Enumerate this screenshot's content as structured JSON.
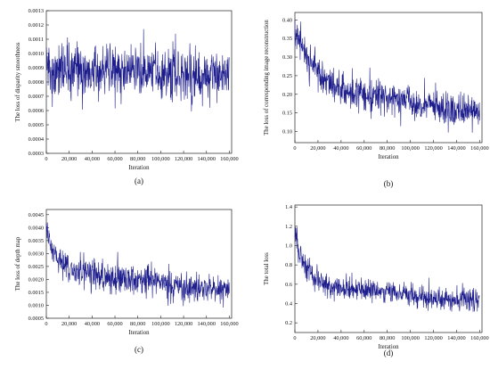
{
  "chart_data": [
    {
      "id": "a",
      "type": "line",
      "caption": "(a)",
      "xlabel": "Iteration",
      "ylabel": "The loss of disparity smoothness",
      "xlim": [
        0,
        162000
      ],
      "ylim": [
        0.0003,
        0.0013
      ],
      "xticks": [
        0,
        20000,
        40000,
        60000,
        80000,
        100000,
        120000,
        140000,
        160000
      ],
      "xtick_labels": [
        "0",
        "20,000",
        "40,000",
        "60,000",
        "80,000",
        "100,000",
        "120,000",
        "140,000",
        "160,000"
      ],
      "yticks": [
        0.0003,
        0.0004,
        0.0005,
        0.0006,
        0.0007,
        0.0008,
        0.0009,
        0.001,
        0.0011,
        0.0012,
        0.0013
      ],
      "ytick_labels": [
        "0.0003",
        "0.0004",
        "0.0005",
        "0.0006",
        "0.0007",
        "0.0008",
        "0.0009",
        "0.0010",
        "0.0011",
        "0.0012",
        "0.0013"
      ],
      "x": [
        0,
        2000,
        5000,
        10000,
        20000,
        30000,
        40000,
        50000,
        60000,
        70000,
        80000,
        90000,
        100000,
        110000,
        120000,
        130000,
        140000,
        150000,
        160000
      ],
      "y": [
        0.00105,
        0.00092,
        0.00087,
        0.00088,
        0.00089,
        0.00088,
        0.00087,
        0.00089,
        0.00088,
        0.00087,
        0.00087,
        0.00088,
        0.00088,
        0.00085,
        0.00085,
        0.00084,
        0.00085,
        0.00084,
        0.00084
      ],
      "noise": 9e-05,
      "grid": false
    },
    {
      "id": "b",
      "type": "line",
      "caption": "(b)",
      "xlabel": "Iteration",
      "ylabel": "The loss of corresponding image reconstruction",
      "xlim": [
        0,
        162000
      ],
      "ylim": [
        0.07,
        0.42
      ],
      "xticks": [
        0,
        20000,
        40000,
        60000,
        80000,
        100000,
        120000,
        140000,
        160000
      ],
      "xtick_labels": [
        "0",
        "20,000",
        "40,000",
        "60,000",
        "80,000",
        "100,000",
        "120,000",
        "140,000",
        "160,000"
      ],
      "yticks": [
        0.1,
        0.15,
        0.2,
        0.25,
        0.3,
        0.35,
        0.4
      ],
      "ytick_labels": [
        "0.10",
        "0.15",
        "0.20",
        "0.25",
        "0.30",
        "0.35",
        "0.40"
      ],
      "x": [
        0,
        2000,
        5000,
        10000,
        20000,
        30000,
        40000,
        50000,
        60000,
        70000,
        80000,
        90000,
        100000,
        110000,
        120000,
        130000,
        140000,
        150000,
        160000
      ],
      "y": [
        0.37,
        0.35,
        0.33,
        0.3,
        0.26,
        0.23,
        0.215,
        0.205,
        0.2,
        0.195,
        0.19,
        0.185,
        0.18,
        0.17,
        0.165,
        0.16,
        0.155,
        0.155,
        0.15
      ],
      "noise": 0.022,
      "grid": false
    },
    {
      "id": "c",
      "type": "line",
      "caption": "(c)",
      "xlabel": "Iteration",
      "ylabel": "The loss of depth map",
      "xlim": [
        0,
        162000
      ],
      "ylim": [
        0.0005,
        0.0047
      ],
      "xticks": [
        0,
        20000,
        40000,
        60000,
        80000,
        100000,
        120000,
        140000,
        160000
      ],
      "xtick_labels": [
        "0",
        "20,000",
        "40,000",
        "60,000",
        "80,000",
        "100,000",
        "120,000",
        "140,000",
        "160,000"
      ],
      "yticks": [
        0.0005,
        0.001,
        0.0015,
        0.002,
        0.0025,
        0.003,
        0.0035,
        0.004,
        0.0045
      ],
      "ytick_labels": [
        "0.0005",
        "0.0010",
        "0.0015",
        "0.0020",
        "0.0025",
        "0.0030",
        "0.0035",
        "0.0040",
        "0.0045"
      ],
      "x": [
        0,
        2000,
        5000,
        10000,
        20000,
        30000,
        40000,
        50000,
        60000,
        70000,
        80000,
        90000,
        100000,
        110000,
        120000,
        130000,
        140000,
        150000,
        160000
      ],
      "y": [
        0.0043,
        0.0037,
        0.0031,
        0.0027,
        0.0024,
        0.00225,
        0.0022,
        0.0021,
        0.0021,
        0.002,
        0.002,
        0.00195,
        0.0019,
        0.0017,
        0.0017,
        0.00165,
        0.0017,
        0.0016,
        0.0016
      ],
      "noise": 0.00028,
      "grid": false
    },
    {
      "id": "d",
      "type": "line",
      "caption": "(d)",
      "xlabel": "Iteration",
      "ylabel": "The total loss",
      "xlim": [
        0,
        162000
      ],
      "ylim": [
        0.1,
        1.42
      ],
      "xticks": [
        0,
        20000,
        40000,
        60000,
        80000,
        100000,
        120000,
        140000,
        160000
      ],
      "xtick_labels": [
        "0",
        "20,000",
        "40,000",
        "60,000",
        "80,000",
        "100,000",
        "120,000",
        "140,000",
        "160,000"
      ],
      "yticks": [
        0.2,
        0.4,
        0.6,
        0.8,
        1.0,
        1.2,
        1.4
      ],
      "ytick_labels": [
        "0.2",
        "0.4",
        "0.6",
        "0.8",
        "1.0",
        "1.2",
        "1.4"
      ],
      "x": [
        0,
        2000,
        5000,
        10000,
        20000,
        30000,
        40000,
        50000,
        60000,
        70000,
        80000,
        90000,
        100000,
        110000,
        120000,
        130000,
        140000,
        150000,
        160000
      ],
      "y": [
        1.15,
        1.0,
        0.88,
        0.75,
        0.63,
        0.58,
        0.56,
        0.55,
        0.54,
        0.53,
        0.52,
        0.51,
        0.5,
        0.47,
        0.46,
        0.45,
        0.45,
        0.44,
        0.44
      ],
      "noise": 0.06,
      "grid": false
    }
  ],
  "colors": {
    "line": "#1c1c8c",
    "axis": "#222222"
  }
}
